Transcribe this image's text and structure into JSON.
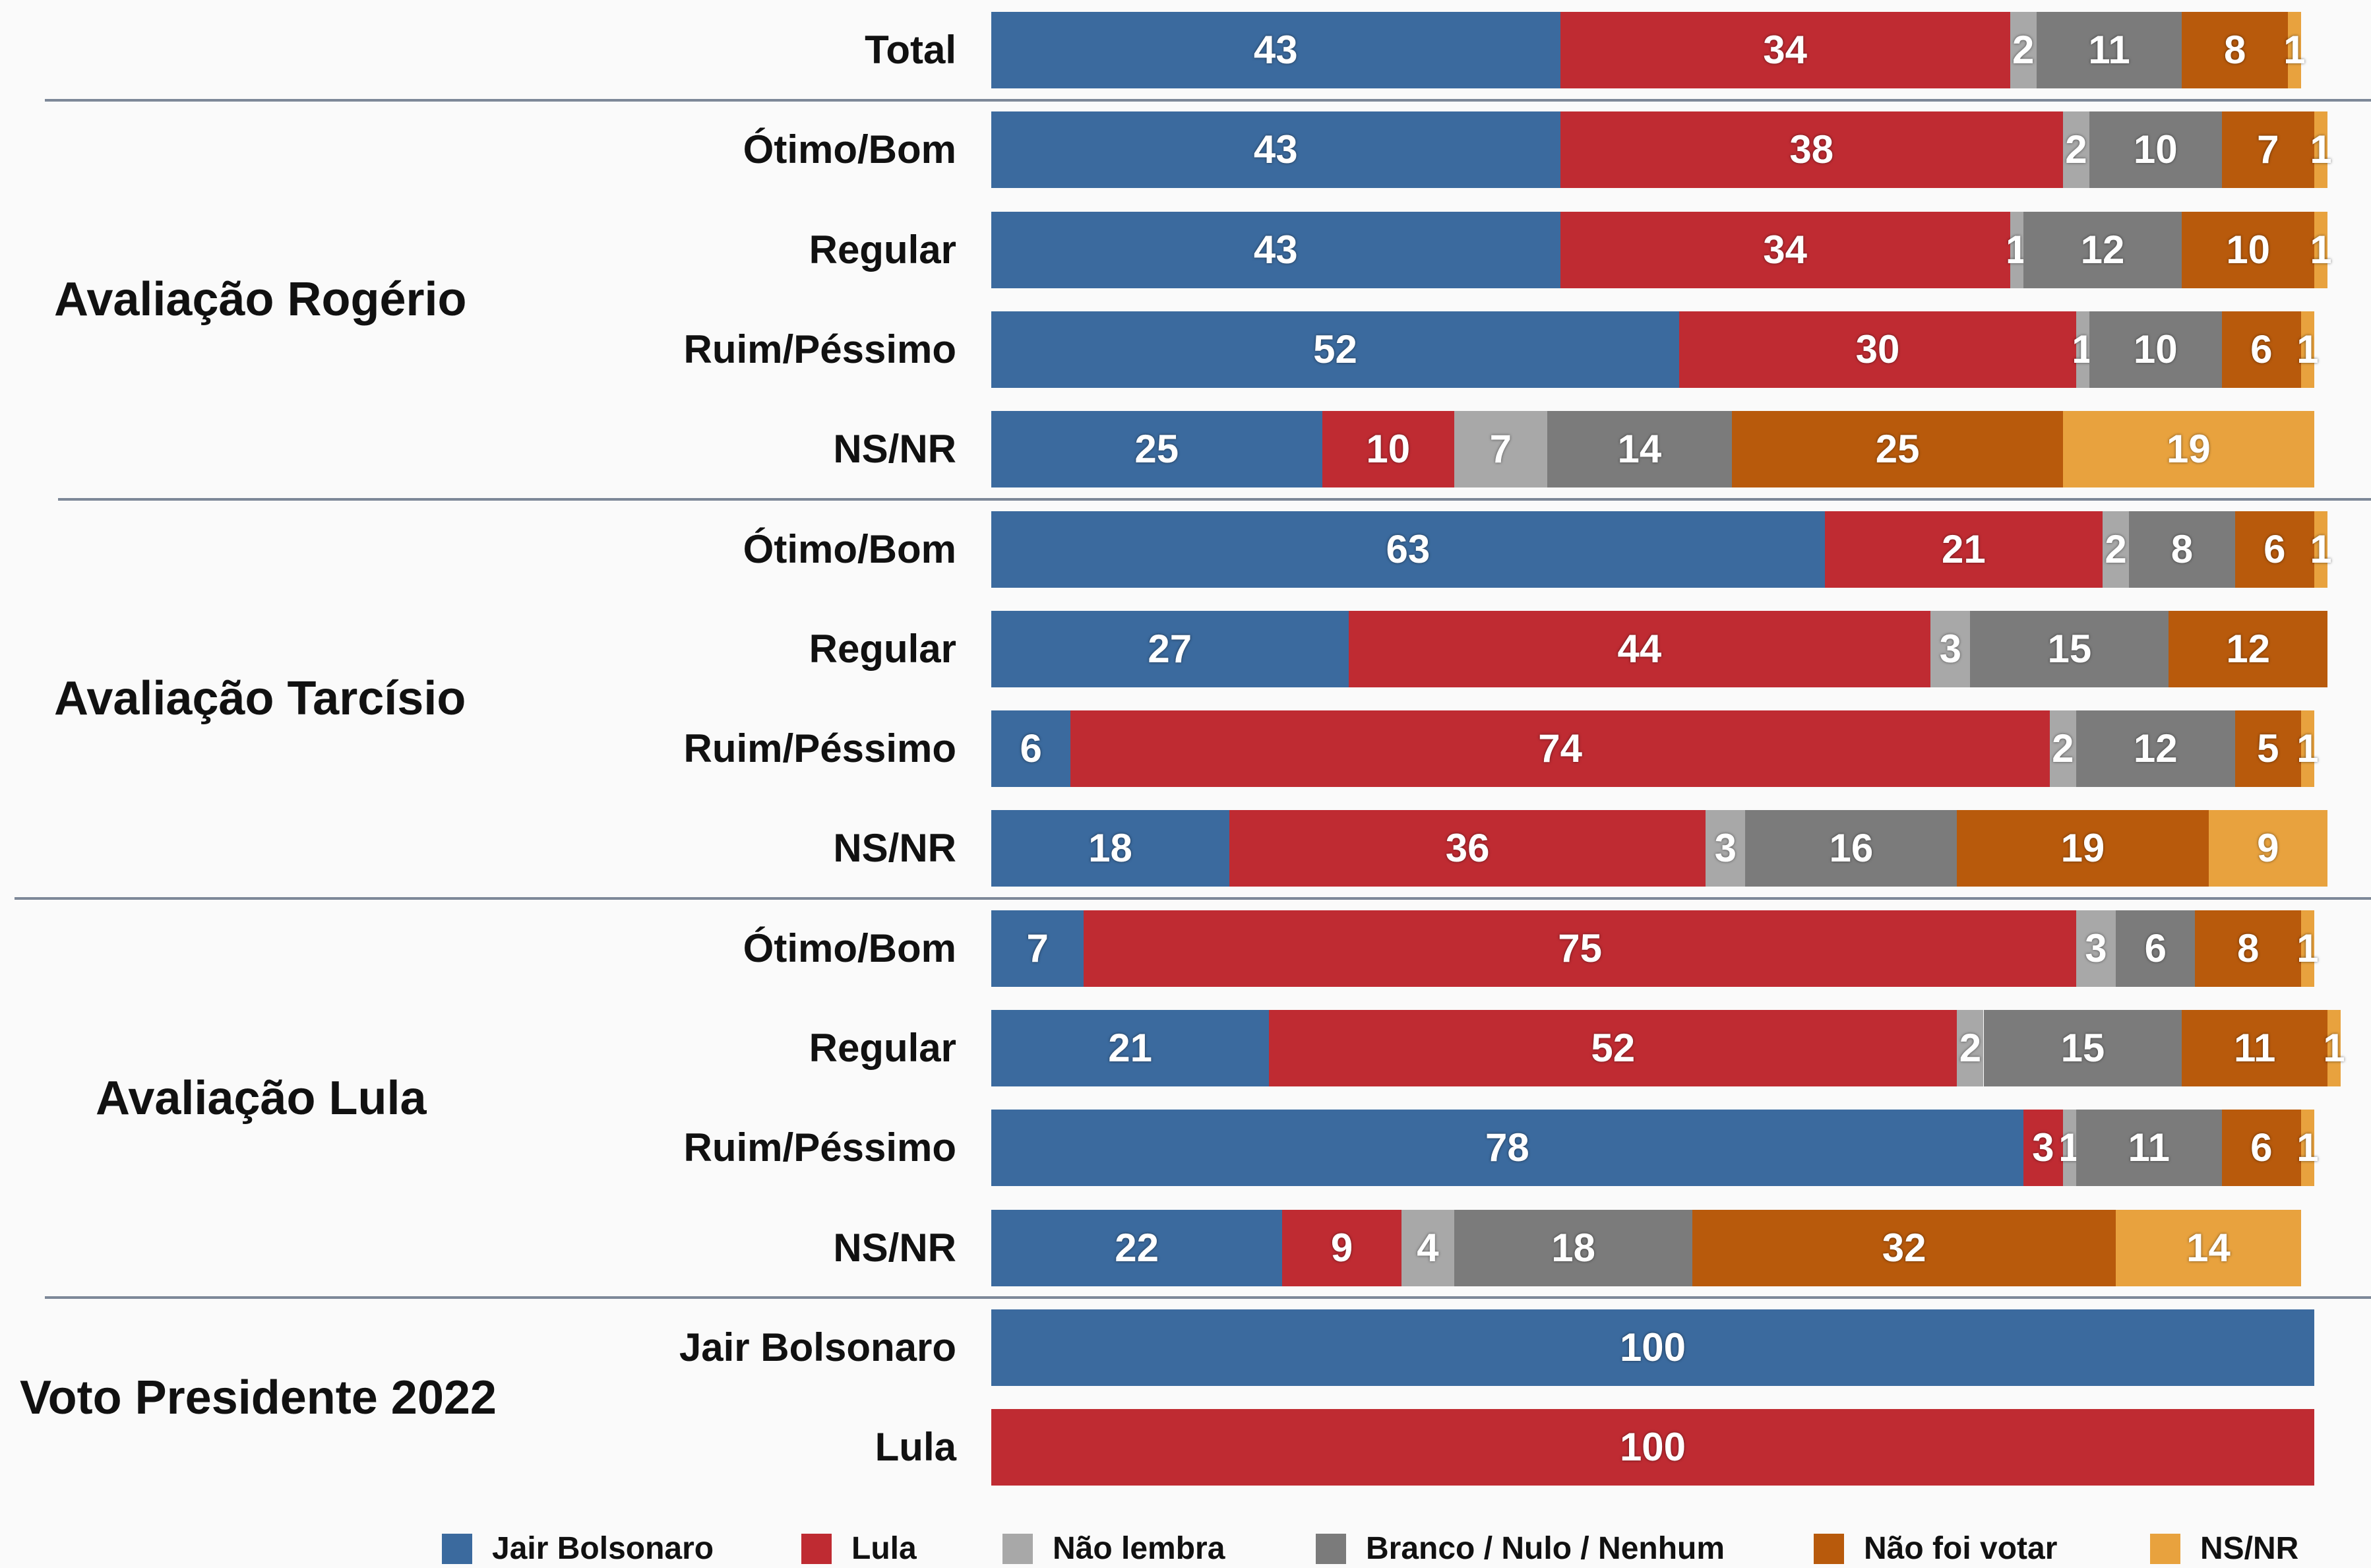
{
  "chart_data": {
    "type": "bar",
    "orientation": "horizontal",
    "stacked": true,
    "xlim": [
      0,
      100
    ],
    "grid": false,
    "legend_position": "bottom",
    "series": [
      {
        "name": "Jair Bolsonaro",
        "color": "#3b6a9e"
      },
      {
        "name": "Lula",
        "color": "#bf2b32"
      },
      {
        "name": "Não lembra",
        "color": "#a8a8a8"
      },
      {
        "name": "Branco / Nulo / Nenhum",
        "color": "#7b7b7b"
      },
      {
        "name": "Não foi votar",
        "color": "#b85a0c"
      },
      {
        "name": "NS/NR",
        "color": "#e8a23e"
      }
    ],
    "groups": [
      {
        "label": "",
        "rows": [
          {
            "label": "Total",
            "values": [
              43,
              34,
              2,
              11,
              8,
              1
            ]
          }
        ]
      },
      {
        "label": "Avaliação Rogério",
        "rows": [
          {
            "label": "Ótimo/Bom",
            "values": [
              43,
              38,
              2,
              10,
              7,
              1
            ]
          },
          {
            "label": "Regular",
            "values": [
              43,
              34,
              1,
              12,
              10,
              1
            ]
          },
          {
            "label": "Ruim/Péssimo",
            "values": [
              52,
              30,
              1,
              10,
              6,
              1
            ]
          },
          {
            "label": "NS/NR",
            "values": [
              25,
              10,
              7,
              14,
              25,
              19
            ]
          }
        ]
      },
      {
        "label": "Avaliação Tarcísio",
        "rows": [
          {
            "label": "Ótimo/Bom",
            "values": [
              63,
              21,
              2,
              8,
              6,
              1
            ]
          },
          {
            "label": "Regular",
            "values": [
              27,
              44,
              3,
              15,
              12,
              0
            ]
          },
          {
            "label": "Ruim/Péssimo",
            "values": [
              6,
              74,
              2,
              12,
              5,
              1
            ]
          },
          {
            "label": "NS/NR",
            "values": [
              18,
              36,
              3,
              16,
              19,
              9
            ]
          }
        ]
      },
      {
        "label": "Avaliação Lula",
        "rows": [
          {
            "label": "Ótimo/Bom",
            "values": [
              7,
              75,
              3,
              6,
              8,
              1
            ]
          },
          {
            "label": "Regular",
            "values": [
              21,
              52,
              2,
              15,
              11,
              1
            ]
          },
          {
            "label": "Ruim/Péssimo",
            "values": [
              78,
              3,
              1,
              11,
              6,
              1
            ]
          },
          {
            "label": "NS/NR",
            "values": [
              22,
              9,
              4,
              18,
              32,
              14
            ]
          }
        ]
      },
      {
        "label": "Voto Presidente 2022",
        "rows": [
          {
            "label": "Jair Bolsonaro",
            "values": [
              100,
              0,
              0,
              0,
              0,
              0
            ]
          },
          {
            "label": "Lula",
            "values": [
              0,
              100,
              0,
              0,
              0,
              0
            ]
          }
        ]
      }
    ]
  }
}
